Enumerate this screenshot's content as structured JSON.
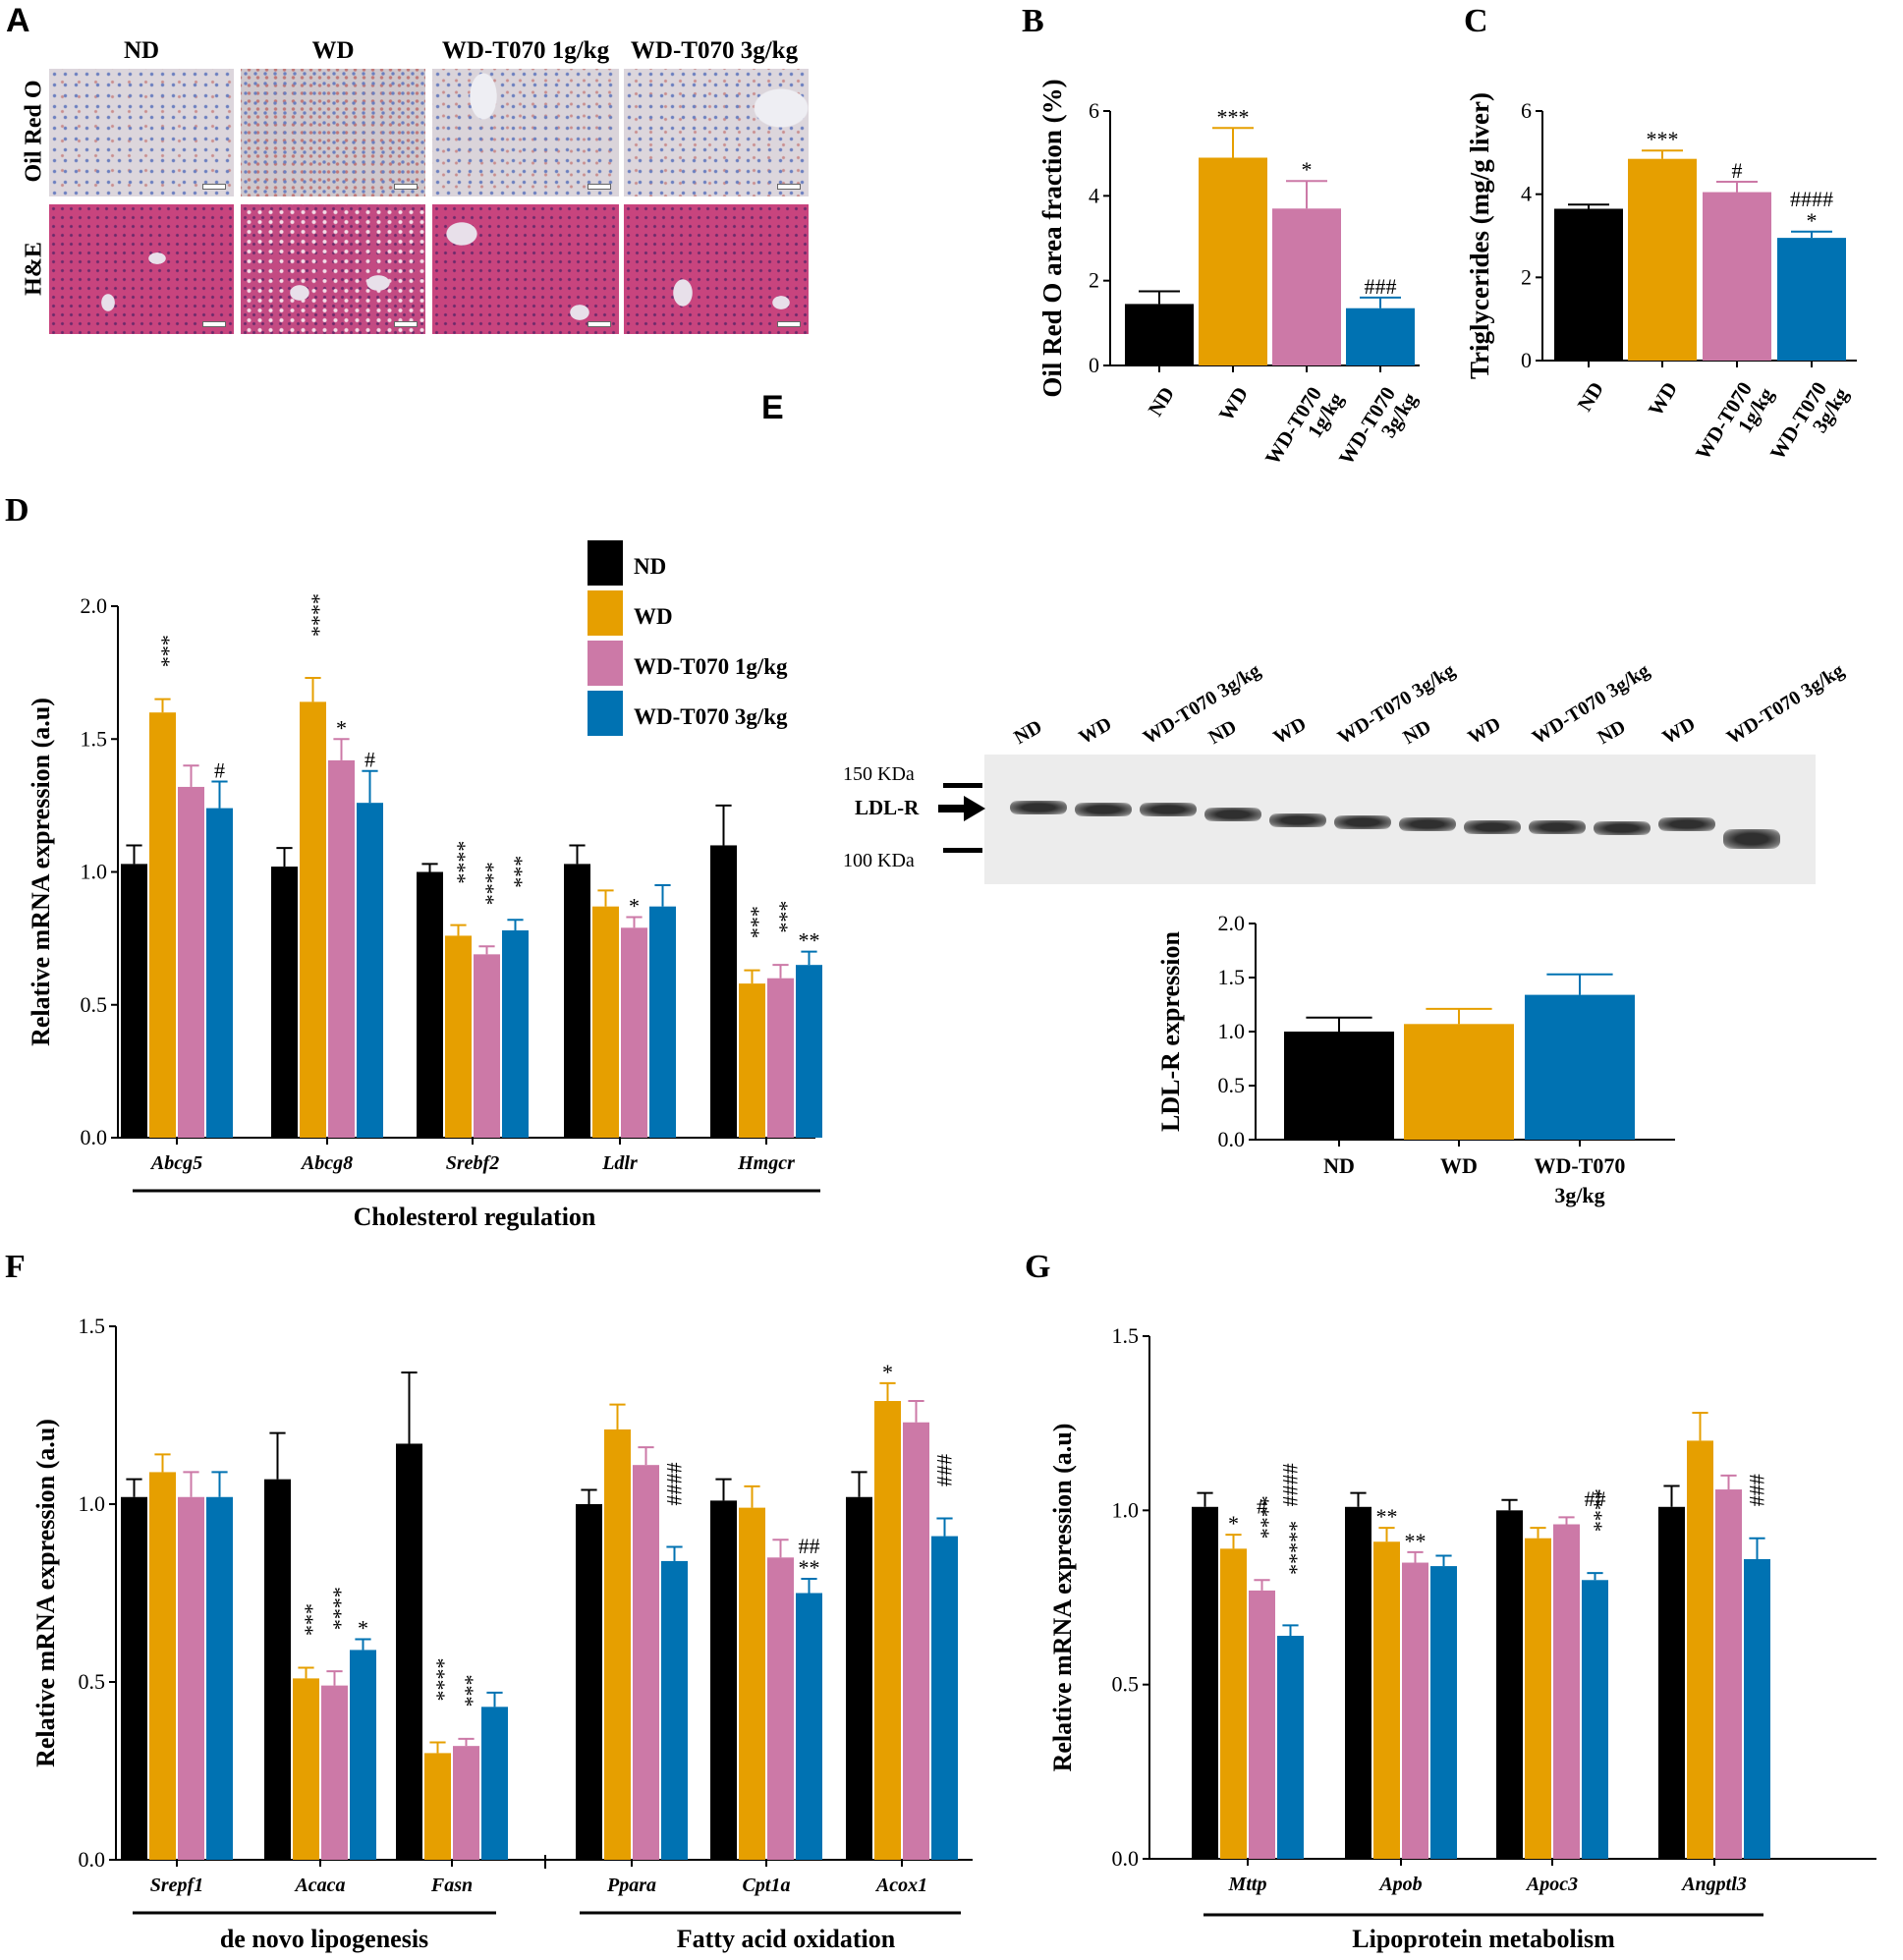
{
  "colors": {
    "ND": "#000000",
    "WD": "#E69F00",
    "WD-T070 1g/kg": "#CC79A7",
    "WD-T070 3g/kg": "#0072B2"
  },
  "panel_a": {
    "letter": "A",
    "columns": [
      "ND",
      "WD",
      "WD-T070 1g/kg",
      "WD-T070 3g/kg"
    ],
    "rows": [
      "Oil Red O",
      "H&E"
    ]
  },
  "panel_e": {
    "letter": "E",
    "blot_lanes": [
      "ND",
      "WD",
      "WD-T070 3g/kg",
      "ND",
      "WD",
      "WD-T070 3g/kg",
      "ND",
      "WD",
      "WD-T070 3g/kg",
      "ND",
      "WD",
      "WD-T070 3g/kg"
    ],
    "marker_150": "150 KDa",
    "marker_100": "100 KDa",
    "band_label": "LDL-R"
  },
  "chart_data": [
    {
      "id": "B",
      "letter": "B",
      "type": "bar",
      "ylabel": "Oil Red O area fraction (%)",
      "ylim": [
        0,
        6
      ],
      "yticks": [
        "0",
        "2",
        "4",
        "6"
      ],
      "categories": [
        "ND",
        "WD",
        "WD-T070 1g/kg",
        "WD-T070 3g/kg"
      ],
      "tick_labels": [
        [
          "ND"
        ],
        [
          "WD"
        ],
        [
          "WD-T070",
          "1g/kg"
        ],
        [
          "WD-T070",
          "3g/kg"
        ]
      ],
      "values": [
        1.45,
        4.9,
        3.7,
        1.35
      ],
      "errors": [
        0.3,
        0.7,
        0.65,
        0.25
      ],
      "annotations": [
        [],
        [
          "***"
        ],
        [
          "*"
        ],
        [
          "###"
        ]
      ]
    },
    {
      "id": "C",
      "letter": "C",
      "type": "bar",
      "ylabel": "Triglycerides (mg/g liver)",
      "ylim": [
        0,
        6
      ],
      "yticks": [
        "0",
        "2",
        "4",
        "6"
      ],
      "categories": [
        "ND",
        "WD",
        "WD-T070 1g/kg",
        "WD-T070 3g/kg"
      ],
      "tick_labels": [
        [
          "ND"
        ],
        [
          "WD"
        ],
        [
          "WD-T070",
          "1g/kg"
        ],
        [
          "WD-T070",
          "3g/kg"
        ]
      ],
      "values": [
        3.65,
        4.85,
        4.05,
        2.95
      ],
      "errors": [
        0.1,
        0.2,
        0.25,
        0.15
      ],
      "annotations": [
        [],
        [
          "***"
        ],
        [
          "#"
        ],
        [
          "*",
          "####"
        ]
      ]
    },
    {
      "id": "D",
      "letter": "D",
      "type": "bar",
      "ylabel": "Relative mRNA expression (a.u)",
      "ylim": [
        0,
        2.0
      ],
      "yticks": [
        "0.0",
        "0.5",
        "1.0",
        "1.5",
        "2.0"
      ],
      "categories": [
        "Abcg5",
        "Abcg8",
        "Srebf2",
        "Ldlr",
        "Hmgcr"
      ],
      "series": [
        {
          "name": "ND",
          "values": [
            1.03,
            1.02,
            1.0,
            1.03,
            1.1
          ],
          "errors": [
            0.07,
            0.07,
            0.03,
            0.07,
            0.15
          ]
        },
        {
          "name": "WD",
          "values": [
            1.6,
            1.64,
            0.76,
            0.87,
            0.58
          ],
          "errors": [
            0.05,
            0.09,
            0.04,
            0.06,
            0.05
          ]
        },
        {
          "name": "WD-T070 1g/kg",
          "values": [
            1.32,
            1.42,
            0.69,
            0.79,
            0.6
          ],
          "errors": [
            0.08,
            0.08,
            0.03,
            0.04,
            0.05
          ]
        },
        {
          "name": "WD-T070 3g/kg",
          "values": [
            1.24,
            1.26,
            0.78,
            0.87,
            0.65
          ],
          "errors": [
            0.1,
            0.12,
            0.04,
            0.08,
            0.05
          ]
        }
      ],
      "annotations": [
        [
          [],
          [
            "***"
          ],
          [],
          [
            "#"
          ]
        ],
        [
          [],
          [
            "****"
          ],
          [
            "*"
          ],
          [
            "#"
          ]
        ],
        [
          [],
          [
            "****"
          ],
          [
            "****"
          ],
          [
            "***"
          ]
        ],
        [
          [],
          [],
          [
            "*"
          ],
          []
        ],
        [
          [],
          [
            "***"
          ],
          [
            "***"
          ],
          [
            "**"
          ]
        ]
      ],
      "group_label": "Cholesterol regulation"
    },
    {
      "id": "E",
      "letter": "",
      "type": "bar",
      "ylabel": "LDL-R expression",
      "ylim": [
        0,
        2.0
      ],
      "yticks": [
        "0.0",
        "0.5",
        "1.0",
        "1.5",
        "2.0"
      ],
      "categories": [
        "ND",
        "WD",
        "WD-T070 3g/kg"
      ],
      "tick_labels": [
        [
          "ND"
        ],
        [
          "WD"
        ],
        [
          "WD-T070",
          "3g/kg"
        ]
      ],
      "values": [
        1.0,
        1.07,
        1.34
      ],
      "errors": [
        0.13,
        0.14,
        0.19
      ],
      "annotations": [
        [],
        [],
        []
      ]
    },
    {
      "id": "F",
      "letter": "F",
      "type": "bar",
      "ylabel": "Relative mRNA expression (a.u)",
      "ylim": [
        0,
        1.5
      ],
      "yticks": [
        "0.0",
        "0.5",
        "1.0",
        "1.5"
      ],
      "categories": [
        "Srepf1",
        "Acaca",
        "Fasn",
        "Ppara",
        "Cpt1a",
        "Acox1"
      ],
      "series": [
        {
          "name": "ND",
          "values": [
            1.02,
            1.07,
            1.17,
            1.0,
            1.01,
            1.02
          ],
          "errors": [
            0.05,
            0.13,
            0.2,
            0.04,
            0.06,
            0.07
          ]
        },
        {
          "name": "WD",
          "values": [
            1.09,
            0.51,
            0.3,
            1.21,
            0.99,
            1.29
          ],
          "errors": [
            0.05,
            0.03,
            0.03,
            0.07,
            0.06,
            0.05
          ]
        },
        {
          "name": "WD-T070 1g/kg",
          "values": [
            1.02,
            0.49,
            0.32,
            1.11,
            0.85,
            1.23
          ],
          "errors": [
            0.07,
            0.04,
            0.02,
            0.05,
            0.05,
            0.06
          ]
        },
        {
          "name": "WD-T070 3g/kg",
          "values": [
            1.02,
            0.59,
            0.43,
            0.84,
            0.75,
            0.91
          ],
          "errors": [
            0.07,
            0.03,
            0.04,
            0.04,
            0.04,
            0.05
          ]
        }
      ],
      "annotations": [
        [
          [],
          [],
          [],
          []
        ],
        [
          [],
          [
            "***"
          ],
          [
            "****"
          ],
          [
            "*"
          ]
        ],
        [
          [],
          [
            "****"
          ],
          [
            "***"
          ],
          []
        ],
        [
          [],
          [],
          [],
          [
            "####"
          ]
        ],
        [
          [],
          [],
          [],
          [
            "**",
            "##"
          ]
        ],
        [
          [],
          [
            "*"
          ],
          [],
          [
            "###"
          ]
        ]
      ],
      "group_labels": [
        "de novo lipogenesis",
        "Fatty acid oxidation"
      ]
    },
    {
      "id": "G",
      "letter": "G",
      "type": "bar",
      "ylabel": "Relative mRNA expression (a.u)",
      "ylim": [
        0,
        1.5
      ],
      "yticks": [
        "0.0",
        "0.5",
        "1.0",
        "1.5"
      ],
      "categories": [
        "Mttp",
        "Apob",
        "Apoc3",
        "Angptl3"
      ],
      "series": [
        {
          "name": "ND",
          "values": [
            1.01,
            1.01,
            1.0,
            1.01
          ],
          "errors": [
            0.04,
            0.04,
            0.03,
            0.06
          ]
        },
        {
          "name": "WD",
          "values": [
            0.89,
            0.91,
            0.92,
            1.2
          ],
          "errors": [
            0.04,
            0.04,
            0.03,
            0.08
          ]
        },
        {
          "name": "WD-T070 1g/kg",
          "values": [
            0.77,
            0.85,
            0.96,
            1.06
          ],
          "errors": [
            0.03,
            0.03,
            0.02,
            0.04
          ]
        },
        {
          "name": "WD-T070 3g/kg",
          "values": [
            0.64,
            0.84,
            0.8,
            0.86
          ],
          "errors": [
            0.03,
            0.03,
            0.02,
            0.06
          ]
        }
      ],
      "annotations": [
        [
          [],
          [
            "*"
          ],
          [
            "****",
            "#"
          ],
          [
            "*****",
            "####"
          ]
        ],
        [
          [],
          [
            "**"
          ],
          [
            "**"
          ],
          []
        ],
        [
          [],
          [],
          [],
          [
            "****",
            "##"
          ]
        ],
        [
          [],
          [],
          [],
          [
            "###"
          ]
        ]
      ],
      "group_label": "Lipoprotein metabolism"
    }
  ]
}
